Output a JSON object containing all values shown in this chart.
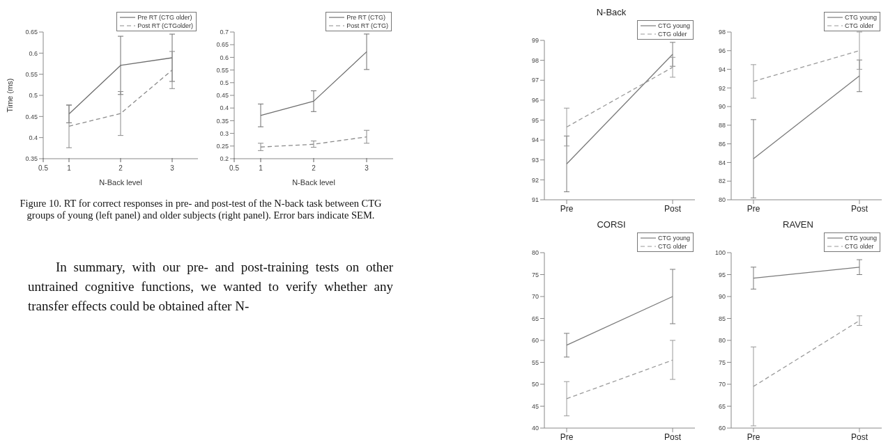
{
  "chart_data": [
    {
      "type": "line",
      "ylabel": "Time (ms)",
      "xlabel": "N-Back level",
      "x": [
        1,
        2,
        3
      ],
      "xlim": [
        0.5,
        3.5
      ],
      "xticks": [
        0.5,
        1,
        2,
        3
      ],
      "ylim": [
        0.35,
        0.65
      ],
      "yticks": [
        0.35,
        0.4,
        0.45,
        0.5,
        0.55,
        0.6,
        0.65
      ],
      "grid": false,
      "legend": "top right",
      "marker": "none",
      "series": [
        {
          "name": "Pre RT (CTG older)",
          "color": "#6e6e6e",
          "line_style": "solid",
          "values": [
            0.456,
            0.571,
            0.589
          ],
          "errors": [
            [
              0.435,
              0.477
            ],
            [
              0.502,
              0.64
            ],
            [
              0.533,
              0.645
            ]
          ]
        },
        {
          "name": "Post RT (CTGolder)",
          "color": "#8a8a8a",
          "line_style": "dashed",
          "values": [
            0.427,
            0.457,
            0.56
          ],
          "errors": [
            [
              0.376,
              0.477
            ],
            [
              0.405,
              0.509
            ],
            [
              0.516,
              0.604
            ]
          ]
        }
      ],
      "annotations": [
        "Figure 10. RT for correct responses in pre- and post-test of the N-back task between CTG groups of young (left panel) and older subjects (right panel). Error bars indicate SEM.",
        "In summary, with our pre- and post-training tests on other untrained cognitive functions, we wanted to verify whether any transfer effects could be obtained after N-"
      ]
    },
    {
      "type": "line",
      "xlabel": "N-Back level",
      "x": [
        1,
        2,
        3
      ],
      "xlim": [
        0.5,
        3.5
      ],
      "xticks": [
        0.5,
        1,
        2,
        3
      ],
      "ylim": [
        0.2,
        0.7
      ],
      "yticks": [
        0.2,
        0.25,
        0.3,
        0.35,
        0.4,
        0.45,
        0.5,
        0.55,
        0.6,
        0.65,
        0.7
      ],
      "grid": false,
      "legend": "top right",
      "marker": "none",
      "series": [
        {
          "name": "Pre RT (CTG)",
          "color": "#6e6e6e",
          "line_style": "solid",
          "values": [
            0.371,
            0.427,
            0.622
          ],
          "errors": [
            [
              0.326,
              0.416
            ],
            [
              0.386,
              0.468
            ],
            [
              0.552,
              0.692
            ]
          ]
        },
        {
          "name": "Post RT (CTG)",
          "color": "#8a8a8a",
          "line_style": "dashed",
          "values": [
            0.246,
            0.257,
            0.286
          ],
          "errors": [
            [
              0.232,
              0.261
            ],
            [
              0.245,
              0.27
            ],
            [
              0.261,
              0.312
            ]
          ]
        }
      ]
    },
    {
      "type": "line",
      "title": "N-Back",
      "categories": [
        "Pre",
        "Post"
      ],
      "ylim": [
        91,
        99
      ],
      "yticks": [
        91,
        92,
        93,
        94,
        95,
        96,
        97,
        98,
        99
      ],
      "grid": false,
      "legend": "top right",
      "marker": "none",
      "series": [
        {
          "name": "CTG young",
          "color": "#7a7a7a",
          "line_style": "solid",
          "values": [
            92.8,
            98.3
          ],
          "errors": [
            [
              91.4,
              94.2
            ],
            [
              97.7,
              98.9
            ]
          ]
        },
        {
          "name": "CTG older",
          "color": "#9a9a9a",
          "line_style": "dashed",
          "values": [
            94.65,
            97.65
          ],
          "errors": [
            [
              93.7,
              95.6
            ],
            [
              97.15,
              98.15
            ]
          ]
        }
      ]
    },
    {
      "type": "line",
      "categories": [
        "Pre",
        "Post"
      ],
      "ylim": [
        80,
        98
      ],
      "yticks": [
        80,
        82,
        84,
        86,
        88,
        90,
        92,
        94,
        96,
        98
      ],
      "grid": false,
      "legend": "top right",
      "marker": "none",
      "series": [
        {
          "name": "CTG young",
          "color": "#7a7a7a",
          "line_style": "solid",
          "values": [
            84.4,
            93.3
          ],
          "errors": [
            [
              80.2,
              88.6
            ],
            [
              91.6,
              95.0
            ]
          ]
        },
        {
          "name": "CTG older",
          "color": "#9a9a9a",
          "line_style": "dashed",
          "values": [
            92.7,
            96
          ],
          "errors": [
            [
              90.9,
              94.5
            ],
            [
              94,
              98
            ]
          ]
        }
      ]
    },
    {
      "type": "line",
      "title": "CORSI",
      "categories": [
        "Pre",
        "Post"
      ],
      "ylim": [
        40,
        80
      ],
      "yticks": [
        40,
        45,
        50,
        55,
        60,
        65,
        70,
        75,
        80
      ],
      "grid": false,
      "legend": "top right",
      "marker": "none",
      "series": [
        {
          "name": "CTG young",
          "color": "#7a7a7a",
          "line_style": "solid",
          "values": [
            58.9,
            70
          ],
          "errors": [
            [
              56.2,
              61.6
            ],
            [
              63.8,
              76.2
            ]
          ]
        },
        {
          "name": "CTG older",
          "color": "#9a9a9a",
          "line_style": "dashed",
          "values": [
            46.7,
            55.5
          ],
          "errors": [
            [
              42.8,
              50.6
            ],
            [
              51.1,
              60
            ]
          ]
        }
      ]
    },
    {
      "type": "line",
      "title": "RAVEN",
      "categories": [
        "Pre",
        "Post"
      ],
      "ylim": [
        60,
        100
      ],
      "yticks": [
        60,
        65,
        70,
        75,
        80,
        85,
        90,
        95,
        100
      ],
      "grid": false,
      "legend": "top right",
      "marker": "none",
      "series": [
        {
          "name": "CTG young",
          "color": "#7a7a7a",
          "line_style": "solid",
          "values": [
            94.2,
            96.7
          ],
          "errors": [
            [
              91.7,
              96.7
            ],
            [
              95,
              98.4
            ]
          ]
        },
        {
          "name": "CTG older",
          "color": "#9a9a9a",
          "line_style": "dashed",
          "values": [
            69.5,
            84.5
          ],
          "errors": [
            [
              60.5,
              78.5
            ],
            [
              83.4,
              85.6
            ]
          ]
        }
      ]
    }
  ]
}
